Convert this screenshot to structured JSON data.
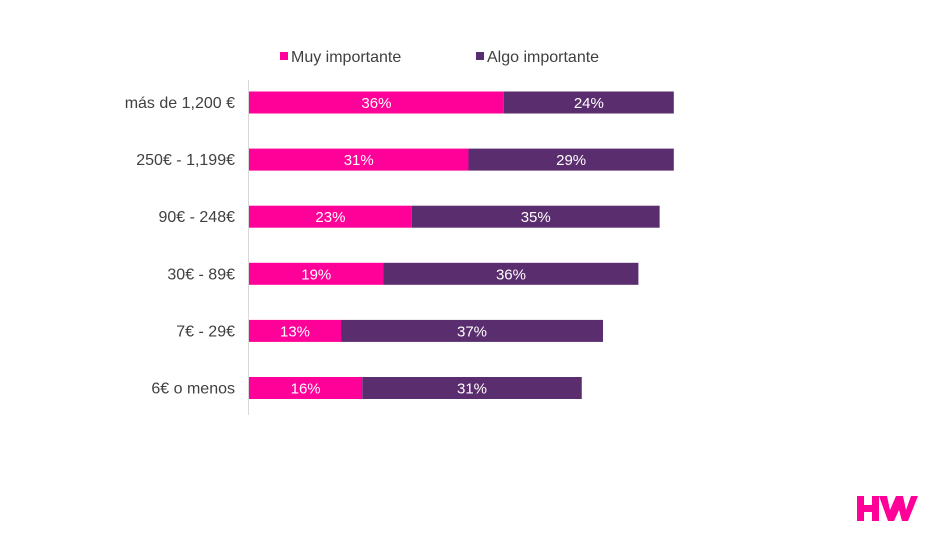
{
  "chart_data": {
    "type": "bar",
    "orientation": "horizontal",
    "stacked": true,
    "categories": [
      "más de 1,200 €",
      "250€ - 1,199€",
      "90€ - 248€",
      "30€ - 89€",
      "7€ - 29€",
      "6€ o menos"
    ],
    "series": [
      {
        "name": "Muy importante",
        "values": [
          36,
          31,
          23,
          19,
          13,
          16
        ],
        "labels": [
          "36%",
          "31%",
          "23%",
          "19%",
          "13%",
          "16%"
        ],
        "color": "#ff0099"
      },
      {
        "name": "Algo importante",
        "values": [
          24,
          29,
          35,
          36,
          37,
          31
        ],
        "labels": [
          "24%",
          "29%",
          "35%",
          "36%",
          "37%",
          "31%"
        ],
        "color": "#5a2d6e"
      }
    ],
    "xlim": [
      0,
      100
    ],
    "grid": false,
    "legend_position": "top"
  },
  "colors": {
    "logo": "#ff0099",
    "axis": "#d9d9d9",
    "text": "#404040"
  },
  "logo": {
    "name": "hw-logo"
  }
}
